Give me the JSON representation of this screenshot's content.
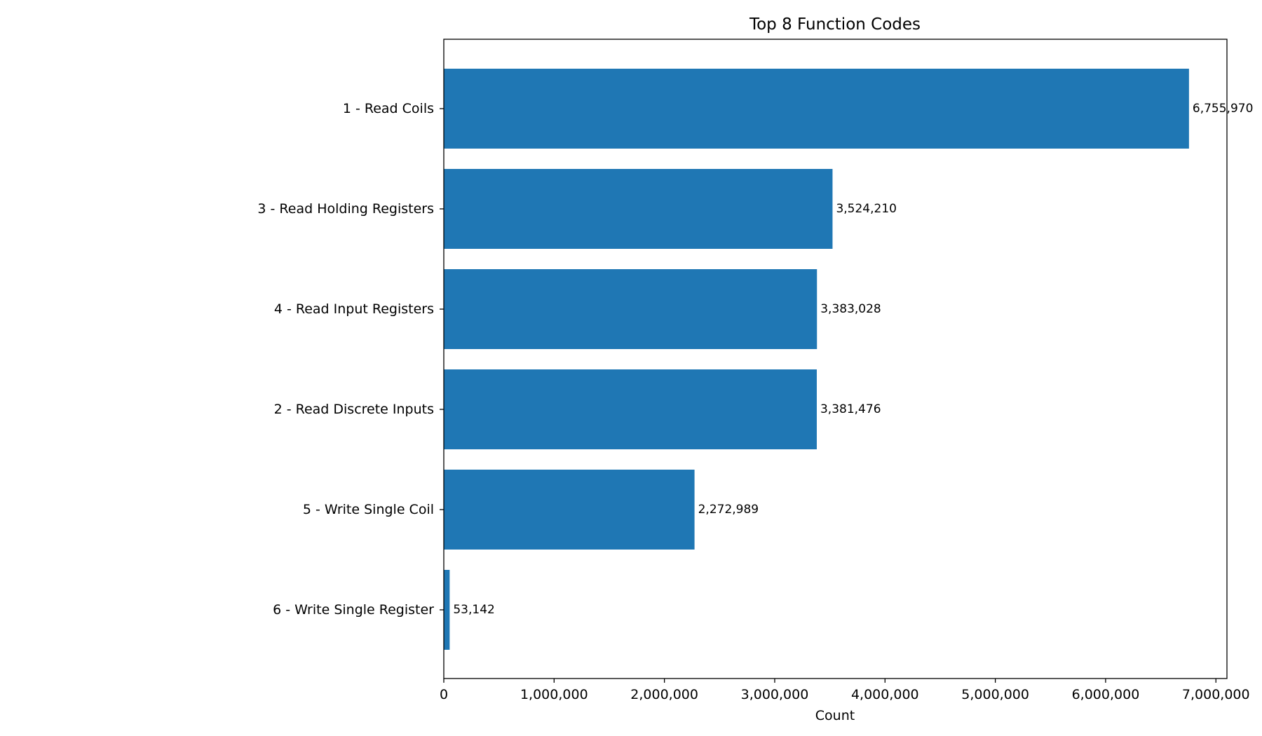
{
  "chart_data": {
    "type": "bar",
    "orientation": "horizontal",
    "title": "Top 8 Function Codes",
    "xlabel": "Count",
    "ylabel": "",
    "xlim": [
      0,
      7100000
    ],
    "x_ticks": [
      0,
      1000000,
      2000000,
      3000000,
      4000000,
      5000000,
      6000000,
      7000000
    ],
    "x_tick_labels": [
      "0",
      "1,000,000",
      "2,000,000",
      "3,000,000",
      "4,000,000",
      "5,000,000",
      "6,000,000",
      "7,000,000"
    ],
    "categories": [
      "1 - Read Coils",
      "3 - Read Holding Registers",
      "4 - Read Input Registers",
      "2 - Read Discrete Inputs",
      "5 - Write Single Coil",
      "6 - Write Single Register"
    ],
    "values": [
      6755970,
      3524210,
      3383028,
      3381476,
      2272989,
      53142
    ],
    "data_labels": [
      "6,755,970",
      "3,524,210",
      "3,383,028",
      "3,381,476",
      "2,272,989",
      "53,142"
    ],
    "bar_color": "#1f77b4",
    "grid": false,
    "legend": "none"
  }
}
